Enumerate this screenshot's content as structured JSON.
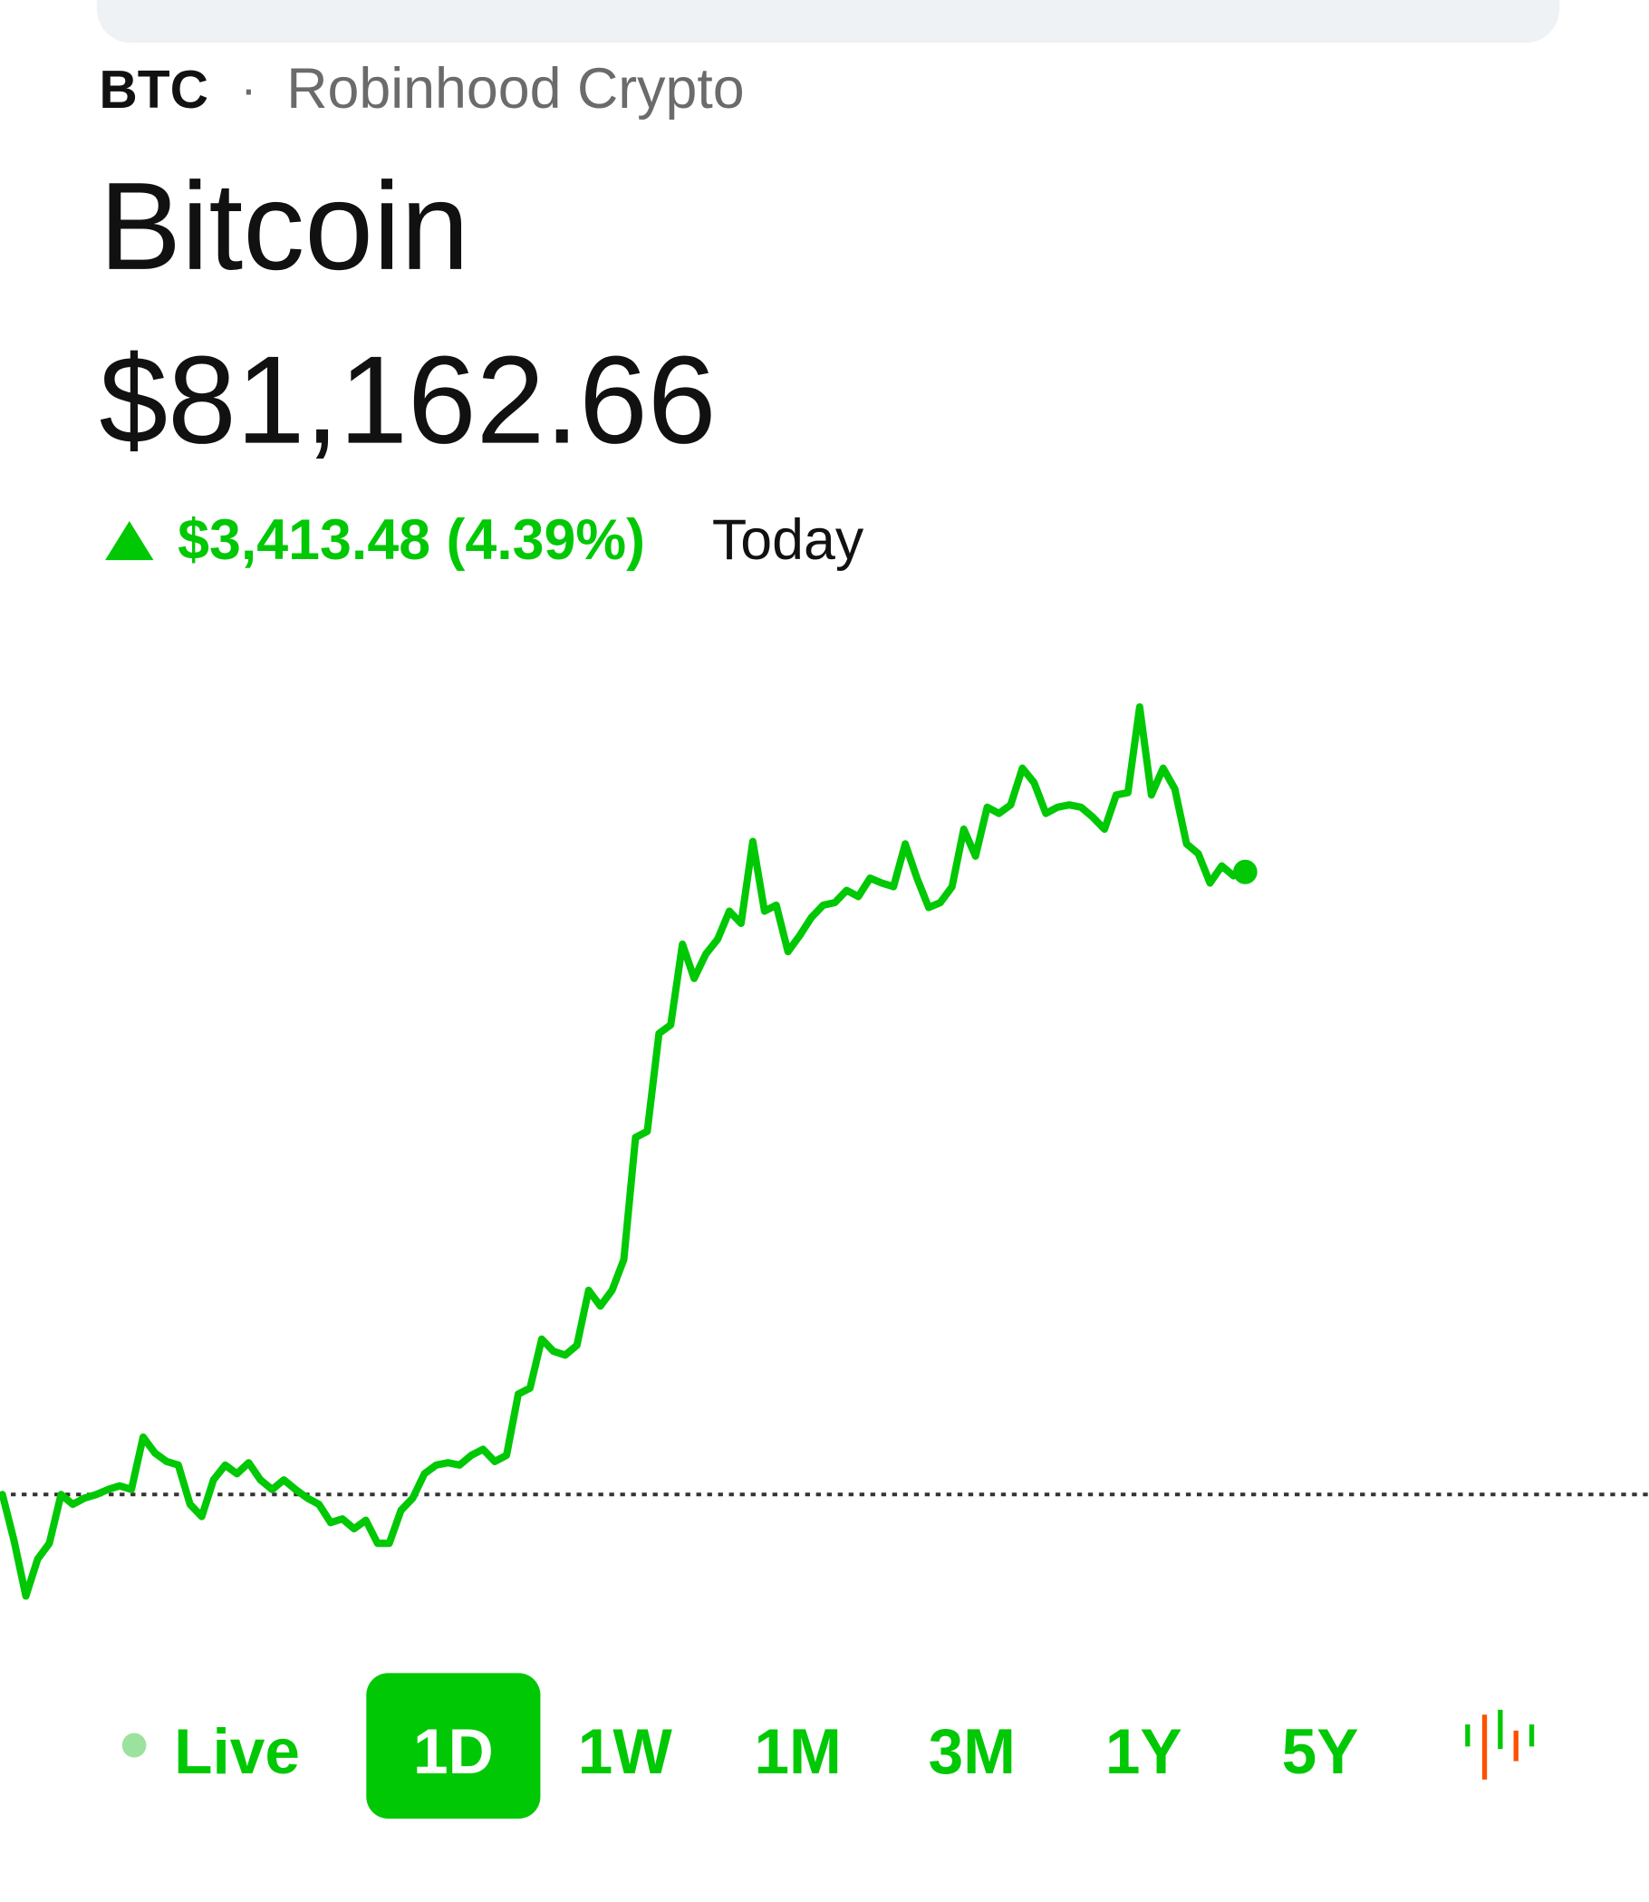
{
  "header": {
    "ticker": "BTC",
    "separator": "·",
    "source": "Robinhood Crypto",
    "name": "Bitcoin",
    "price": "$81,162.66",
    "change": "$3,413.48 (4.39%)",
    "period": "Today"
  },
  "chart_data": {
    "type": "line",
    "color": "#00c805",
    "baseline": 77749.18,
    "values": [
      77749,
      77494,
      77192,
      77394,
      77481,
      77749,
      77695,
      77729,
      77749,
      77776,
      77796,
      77776,
      78064,
      77977,
      77930,
      77910,
      77695,
      77628,
      77829,
      77910,
      77863,
      77923,
      77829,
      77776,
      77829,
      77776,
      77729,
      77695,
      77595,
      77615,
      77561,
      77608,
      77481,
      77481,
      77662,
      77729,
      77863,
      77910,
      77923,
      77910,
      77964,
      77997,
      77930,
      77964,
      78299,
      78332,
      78601,
      78534,
      78513,
      78567,
      78869,
      78782,
      78869,
      79037,
      79707,
      79741,
      80277,
      80324,
      80767,
      80579,
      80713,
      80794,
      80948,
      80881,
      81330,
      80948,
      80981,
      80726,
      80814,
      80914,
      80981,
      80995,
      81062,
      81028,
      81129,
      81102,
      81082,
      81317,
      81129,
      80968,
      80995,
      81082,
      81397,
      81250,
      81518,
      81484,
      81531,
      81732,
      81652,
      81484,
      81518,
      81531,
      81518,
      81464,
      81397,
      81585,
      81598,
      82068,
      81585,
      81732,
      81618,
      81317,
      81263,
      81102,
      81196,
      81142,
      81163
    ]
  },
  "ranges": {
    "items": [
      "Live",
      "1D",
      "1W",
      "1M",
      "3M",
      "1Y",
      "5Y"
    ],
    "selected_index": 1
  }
}
